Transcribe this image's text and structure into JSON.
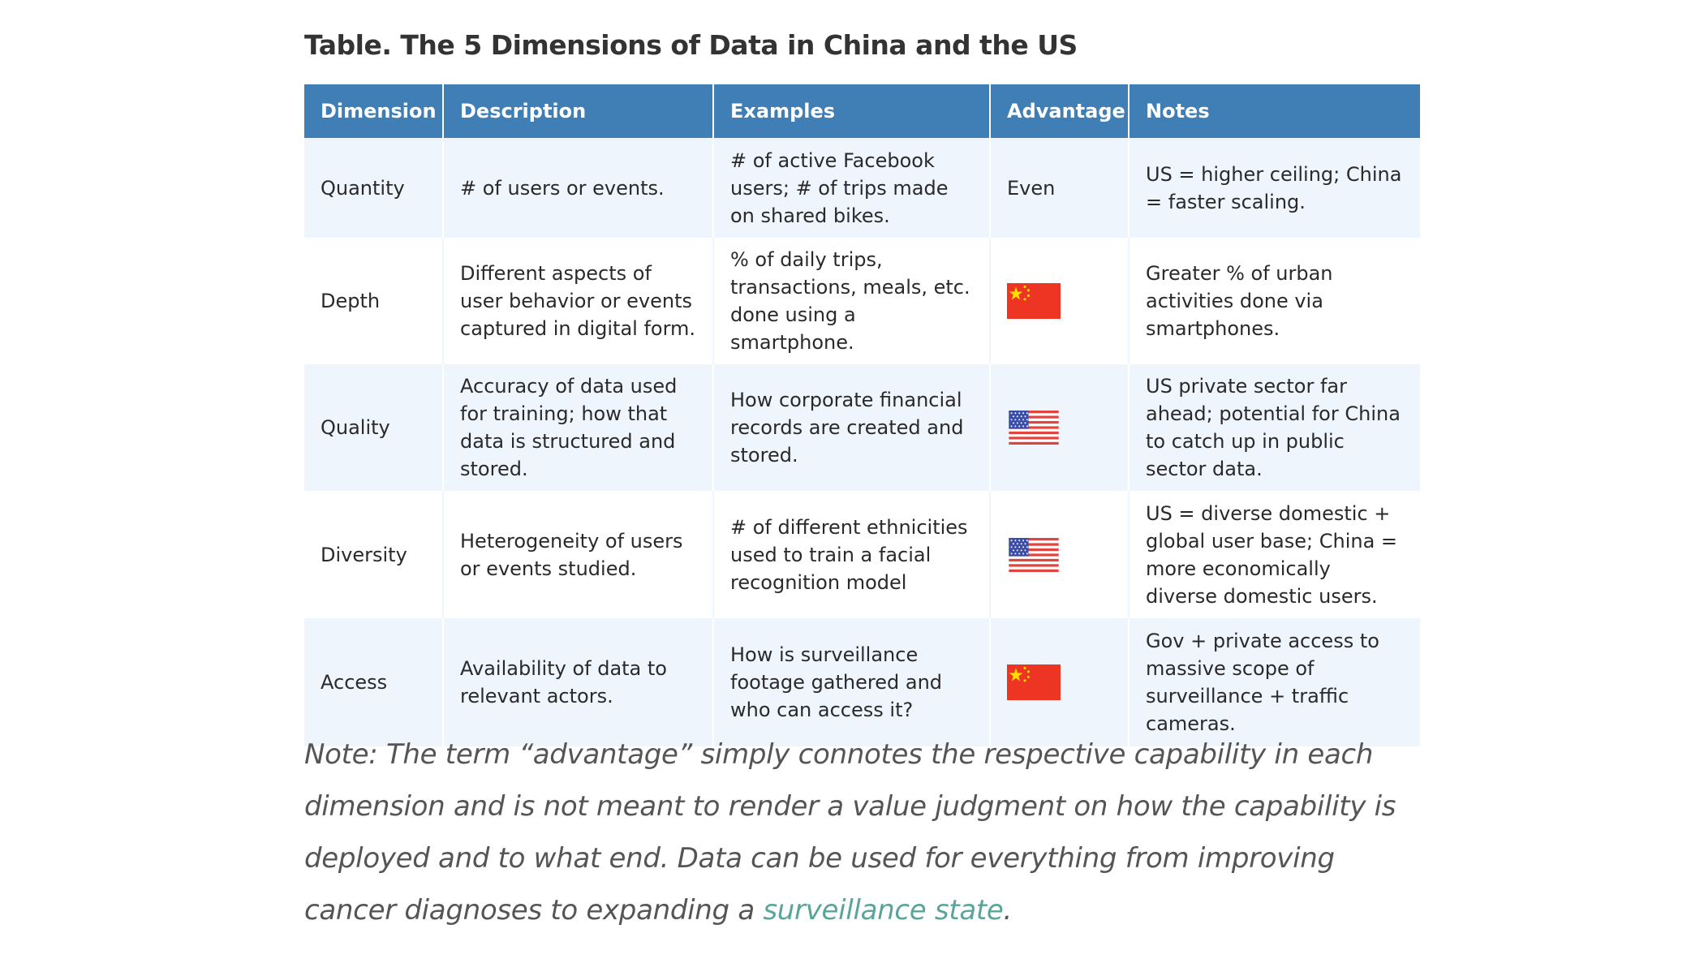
{
  "title": "Table. The 5 Dimensions of Data in China and the US",
  "columns": [
    "Dimension",
    "Description",
    "Examples",
    "Advantage",
    "Notes"
  ],
  "rows": [
    {
      "dimension": "Quantity",
      "description": "# of users or events.",
      "examples": "# of active Facebook users; # of trips made on shared bikes.",
      "advantage": "Even",
      "advantage_icon": "",
      "notes": "US = higher ceiling; China = faster scaling."
    },
    {
      "dimension": "Depth",
      "description": "Different aspects of user behavior or events captured in digital form.",
      "examples": "% of daily trips, transactions, meals, etc. done using a smartphone.",
      "advantage": "",
      "advantage_icon": "china-flag-icon",
      "notes": "Greater % of urban activities done via smartphones."
    },
    {
      "dimension": "Quality",
      "description": "Accuracy of data used for training; how that data is structured and stored.",
      "examples": "How corporate financial records are created and stored.",
      "advantage": "",
      "advantage_icon": "us-flag-icon",
      "notes": "US private sector far ahead; potential for China to catch up in public sector data."
    },
    {
      "dimension": "Diversity",
      "description": "Heterogeneity of users or events studied.",
      "examples": "# of different ethnicities used to train a facial recognition model",
      "advantage": "",
      "advantage_icon": "us-flag-icon",
      "notes": "US = diverse domestic + global user base; China = more economically diverse domestic users."
    },
    {
      "dimension": "Access",
      "description": "Availability of data to relevant actors.",
      "examples": "How is surveillance footage gathered and who can access it?",
      "advantage": "",
      "advantage_icon": "china-flag-icon",
      "notes": "Gov + private access to massive scope of surveillance + traffic cameras."
    }
  ],
  "note": {
    "text": "Note: The term “advantage” simply connotes the respective capability in each dimension and is not meant to render a value judgment on how the capability is deployed and to what end. Data can be used for everything from improving cancer diagnoses to expanding a ",
    "link_text": "surveillance state",
    "suffix": "."
  },
  "colors": {
    "header_bg": "#3f7fb6",
    "row_shade": "#eef5fd",
    "link": "#5aa59a",
    "china_red": "#ee3524",
    "china_star": "#ffde00",
    "us_red": "#e0453f",
    "us_blue": "#3c4fa8"
  }
}
